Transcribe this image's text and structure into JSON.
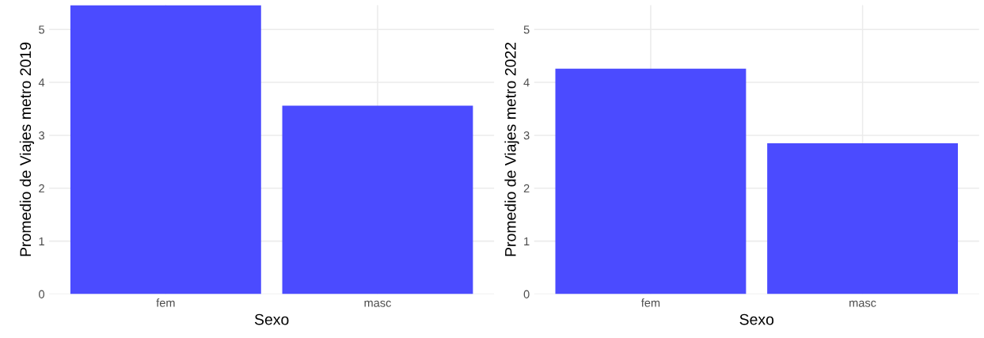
{
  "chart_data": [
    {
      "type": "bar",
      "xlabel": "Sexo",
      "ylabel": "Promedio de Viajes metro 2019",
      "categories": [
        "fem",
        "masc"
      ],
      "values": [
        5.46,
        3.56
      ],
      "color": "#4b4bff",
      "ylim": [
        0,
        5.46
      ],
      "yticks": [
        0,
        1,
        2,
        3,
        4,
        5
      ],
      "grid": true
    },
    {
      "type": "bar",
      "xlabel": "Sexo",
      "ylabel": "Promedio de Viajes metro 2022",
      "categories": [
        "fem",
        "masc"
      ],
      "values": [
        4.26,
        2.85
      ],
      "color": "#4b4bff",
      "ylim": [
        0,
        5.46
      ],
      "yticks": [
        0,
        1,
        2,
        3,
        4,
        5
      ],
      "grid": true
    }
  ]
}
